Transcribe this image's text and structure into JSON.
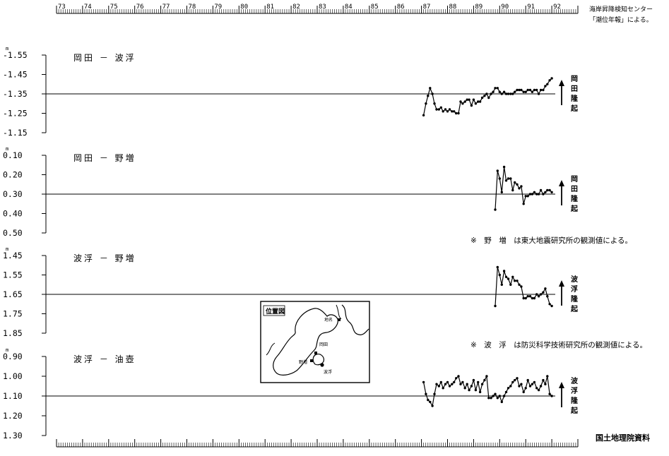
{
  "header": {
    "source_line1": "海岸昇降検知センター",
    "source_line2": "「潮位年報」による。"
  },
  "footer": {
    "credit": "国土地理院資料"
  },
  "notes": [
    "※　野　増　は東大地震研究所の観測値による。",
    "※　波　浮　は防災科学技術研究所の観測値による。"
  ],
  "inset_map": {
    "title": "位置図",
    "labels": [
      "岡田",
      "野増",
      "波浮",
      "地名"
    ]
  },
  "chart_data": {
    "type": "line",
    "x_axis": {
      "ticks": [
        "73",
        "74",
        "75",
        "76",
        "77",
        "78",
        "79",
        "80",
        "81",
        "82",
        "83",
        "84",
        "85",
        "86",
        "87",
        "88",
        "89",
        "90",
        "91",
        "92"
      ],
      "range": [
        1973,
        1993
      ]
    },
    "panels": [
      {
        "title": "岡田 － 波浮",
        "unit": "m",
        "ylim": [
          -1.55,
          -1.15
        ],
        "yticks": [
          "-1.55",
          "-1.45",
          "-1.35",
          "-1.25",
          "-1.15"
        ],
        "ytick_values": [
          -1.55,
          -1.45,
          -1.35,
          -1.25,
          -1.15
        ],
        "reference": -1.35,
        "side_label": [
          "岡",
          "田",
          "隆",
          "起"
        ],
        "series": [
          {
            "x": [
              1987.08,
              1987.17,
              1987.25,
              1987.33,
              1987.42,
              1987.5,
              1987.58,
              1987.67,
              1987.75,
              1987.83,
              1987.92,
              1988.0,
              1988.08,
              1988.17,
              1988.25,
              1988.33,
              1988.42,
              1988.5,
              1988.58,
              1988.67,
              1988.75,
              1988.83,
              1988.92,
              1989.0,
              1989.08,
              1989.17,
              1989.25,
              1989.33,
              1989.42,
              1989.5,
              1989.58,
              1989.67,
              1989.75,
              1989.83,
              1989.92,
              1990.0,
              1990.08,
              1990.17,
              1990.25,
              1990.33,
              1990.42,
              1990.5,
              1990.58,
              1990.67,
              1990.75,
              1990.83,
              1990.92,
              1991.0,
              1991.08,
              1991.17,
              1991.25,
              1991.33,
              1991.42,
              1991.5,
              1991.58,
              1991.67,
              1991.75,
              1991.83,
              1991.92,
              1992.0
            ],
            "y": [
              -1.24,
              -1.3,
              -1.34,
              -1.38,
              -1.35,
              -1.3,
              -1.27,
              -1.27,
              -1.28,
              -1.26,
              -1.27,
              -1.26,
              -1.27,
              -1.26,
              -1.26,
              -1.25,
              -1.25,
              -1.31,
              -1.3,
              -1.31,
              -1.32,
              -1.32,
              -1.29,
              -1.32,
              -1.3,
              -1.31,
              -1.31,
              -1.33,
              -1.34,
              -1.35,
              -1.33,
              -1.35,
              -1.36,
              -1.38,
              -1.38,
              -1.36,
              -1.35,
              -1.36,
              -1.35,
              -1.35,
              -1.35,
              -1.35,
              -1.36,
              -1.37,
              -1.37,
              -1.37,
              -1.36,
              -1.36,
              -1.37,
              -1.37,
              -1.36,
              -1.37,
              -1.37,
              -1.35,
              -1.37,
              -1.37,
              -1.39,
              -1.4,
              -1.42,
              -1.43
            ]
          }
        ]
      },
      {
        "title": "岡田 － 野増",
        "unit": "m",
        "ylim": [
          0.1,
          0.5
        ],
        "yticks": [
          "0.10",
          "0.20",
          "0.30",
          "0.40",
          "0.50"
        ],
        "ytick_values": [
          0.1,
          0.2,
          0.3,
          0.4,
          0.5
        ],
        "reference": 0.3,
        "side_label": [
          "岡",
          "田",
          "隆",
          "起"
        ],
        "series": [
          {
            "x": [
              1989.83,
              1989.92,
              1990.0,
              1990.08,
              1990.17,
              1990.25,
              1990.33,
              1990.42,
              1990.5,
              1990.58,
              1990.67,
              1990.75,
              1990.83,
              1990.92,
              1991.0,
              1991.08,
              1991.17,
              1991.25,
              1991.33,
              1991.42,
              1991.5,
              1991.58,
              1991.67,
              1991.75,
              1991.83,
              1991.92,
              1992.0
            ],
            "y": [
              0.38,
              0.18,
              0.22,
              0.29,
              0.16,
              0.23,
              0.22,
              0.22,
              0.28,
              0.24,
              0.25,
              0.27,
              0.26,
              0.35,
              0.31,
              0.31,
              0.3,
              0.3,
              0.29,
              0.3,
              0.3,
              0.28,
              0.3,
              0.29,
              0.28,
              0.28,
              0.29
            ]
          }
        ]
      },
      {
        "title": "波浮 － 野増",
        "unit": "m",
        "ylim": [
          1.45,
          1.85
        ],
        "yticks": [
          "1.45",
          "1.55",
          "1.65",
          "1.75",
          "1.85"
        ],
        "ytick_values": [
          1.45,
          1.55,
          1.65,
          1.75,
          1.85
        ],
        "reference": 1.65,
        "side_label": [
          "波",
          "浮",
          "隆",
          "起"
        ],
        "series": [
          {
            "x": [
              1989.83,
              1989.92,
              1990.0,
              1990.08,
              1990.17,
              1990.25,
              1990.33,
              1990.42,
              1990.5,
              1990.58,
              1990.67,
              1990.75,
              1990.83,
              1990.92,
              1991.0,
              1991.08,
              1991.17,
              1991.25,
              1991.33,
              1991.42,
              1991.5,
              1991.58,
              1991.67,
              1991.75,
              1991.83,
              1991.92,
              1992.0
            ],
            "y": [
              1.71,
              1.51,
              1.55,
              1.6,
              1.53,
              1.56,
              1.57,
              1.6,
              1.56,
              1.58,
              1.58,
              1.6,
              1.61,
              1.67,
              1.67,
              1.66,
              1.66,
              1.67,
              1.67,
              1.65,
              1.66,
              1.65,
              1.64,
              1.62,
              1.66,
              1.7,
              1.71
            ]
          }
        ]
      },
      {
        "title": "波浮 － 油壺",
        "unit": "m",
        "ylim": [
          0.9,
          1.3
        ],
        "yticks": [
          "0.90",
          "1.00",
          "1.10",
          "1.20",
          "1.30"
        ],
        "ytick_values": [
          0.9,
          1.0,
          1.1,
          1.2,
          1.3
        ],
        "reference": 1.1,
        "side_label": [
          "波",
          "浮",
          "隆",
          "起"
        ],
        "series": [
          {
            "x": [
              1987.08,
              1987.17,
              1987.25,
              1987.33,
              1987.42,
              1987.5,
              1987.58,
              1987.67,
              1987.75,
              1987.83,
              1987.92,
              1988.0,
              1988.08,
              1988.17,
              1988.25,
              1988.33,
              1988.42,
              1988.5,
              1988.58,
              1988.67,
              1988.75,
              1988.83,
              1988.92,
              1989.0,
              1989.08,
              1989.17,
              1989.25,
              1989.33,
              1989.42,
              1989.5,
              1989.58,
              1989.67,
              1989.75,
              1989.83,
              1989.92,
              1990.0,
              1990.08,
              1990.17,
              1990.25,
              1990.33,
              1990.42,
              1990.5,
              1990.58,
              1990.67,
              1990.75,
              1990.83,
              1990.92,
              1991.0,
              1991.08,
              1991.17,
              1991.25,
              1991.33,
              1991.42,
              1991.5,
              1991.58,
              1991.67,
              1991.75,
              1991.83,
              1991.92,
              1992.0
            ],
            "y": [
              1.03,
              1.09,
              1.12,
              1.13,
              1.15,
              1.09,
              1.04,
              1.05,
              1.03,
              1.06,
              1.04,
              1.03,
              1.05,
              1.04,
              1.03,
              1.01,
              1.0,
              1.04,
              1.03,
              1.06,
              1.04,
              1.07,
              1.05,
              1.02,
              1.07,
              1.03,
              1.08,
              1.04,
              1.02,
              1.0,
              1.11,
              1.11,
              1.1,
              1.09,
              1.11,
              1.1,
              1.13,
              1.1,
              1.08,
              1.06,
              1.05,
              1.03,
              1.02,
              1.01,
              1.05,
              1.04,
              1.08,
              1.06,
              1.02,
              1.05,
              1.04,
              1.03,
              1.06,
              1.07,
              1.05,
              1.02,
              1.04,
              1.0,
              1.09,
              1.1
            ]
          }
        ]
      }
    ]
  }
}
